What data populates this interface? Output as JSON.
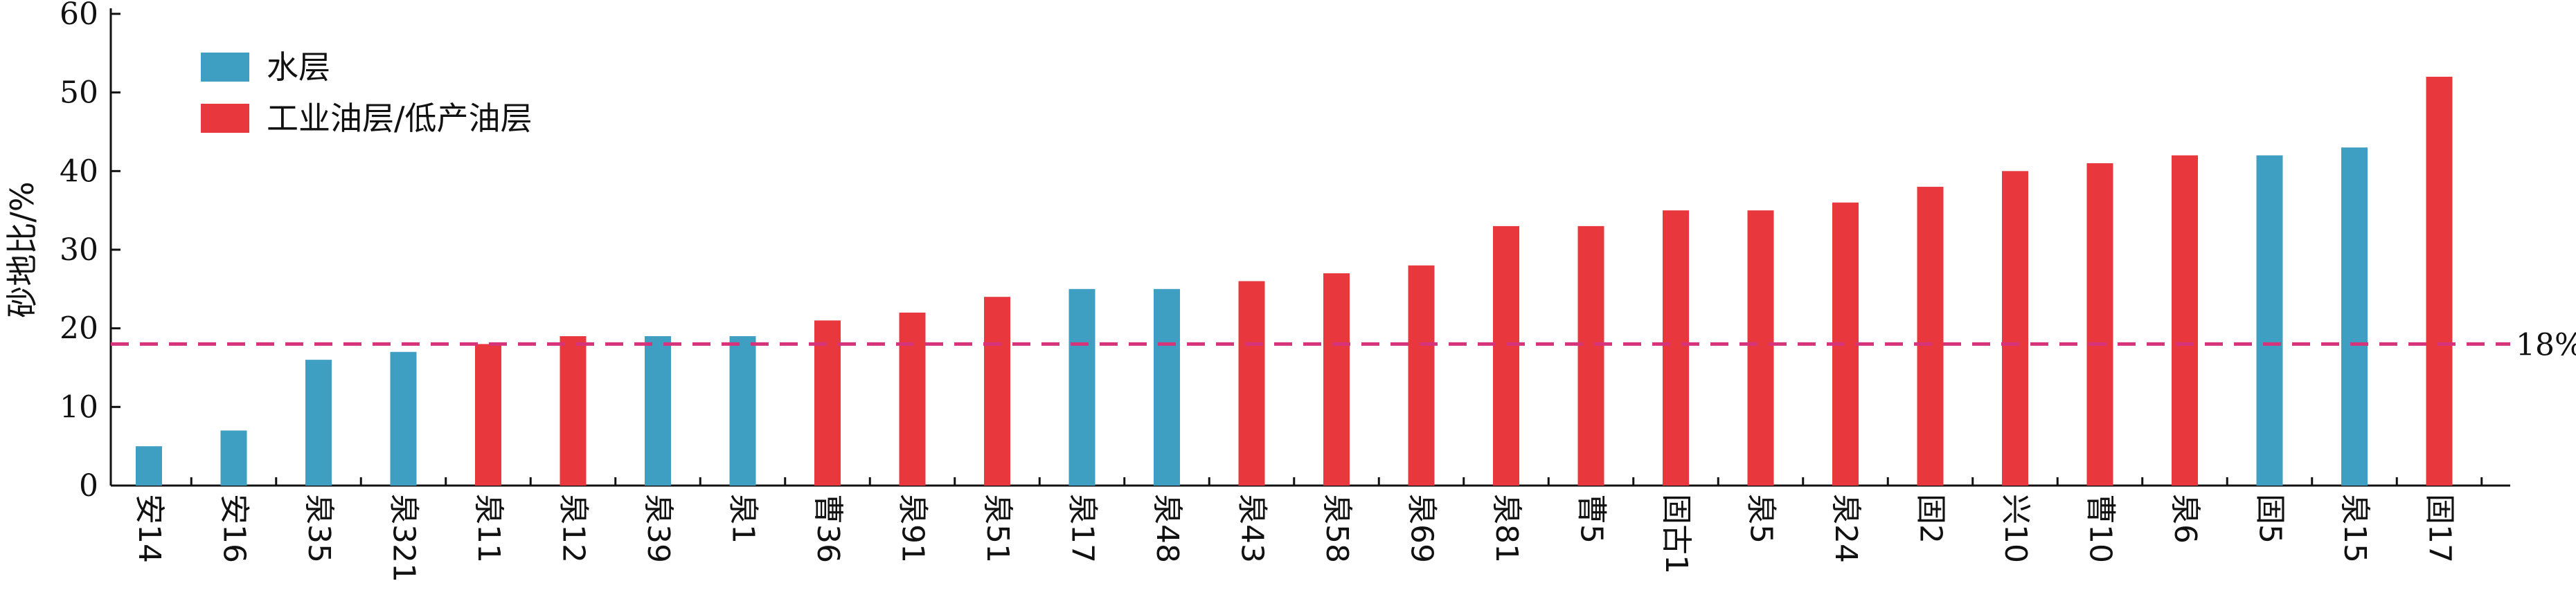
{
  "chart_data": {
    "type": "bar",
    "ylabel": "砂地比/%",
    "ylim": [
      0,
      60
    ],
    "yticks": [
      0,
      10,
      20,
      30,
      40,
      50,
      60
    ],
    "legend": {
      "placement": "top-left",
      "items": [
        {
          "key": "water",
          "label": "水层",
          "color": "#3f9fc3"
        },
        {
          "key": "oil",
          "label": "工业油层/低产油层",
          "color": "#e8383d"
        }
      ]
    },
    "reference_line": {
      "value": 18,
      "label": "18%",
      "color": "#d6337a",
      "style": "dashed"
    },
    "categories": [
      "安14",
      "安16",
      "泉35",
      "泉321",
      "泉11",
      "泉12",
      "泉39",
      "泉1",
      "曹36",
      "泉91",
      "泉51",
      "泉17",
      "泉48",
      "泉43",
      "泉58",
      "泉69",
      "泉81",
      "曹5",
      "固古1",
      "泉5",
      "泉24",
      "固2",
      "兴10",
      "曹10",
      "泉6",
      "固5",
      "泉15",
      "固17"
    ],
    "values": [
      5,
      7,
      16,
      17,
      18,
      19,
      19,
      19,
      21,
      22,
      24,
      25,
      25,
      26,
      27,
      28,
      33,
      33,
      35,
      35,
      36,
      38,
      40,
      41,
      42,
      42,
      43,
      52
    ],
    "layer_type": [
      "water",
      "water",
      "water",
      "water",
      "oil",
      "oil",
      "water",
      "water",
      "oil",
      "oil",
      "oil",
      "water",
      "water",
      "oil",
      "oil",
      "oil",
      "oil",
      "oil",
      "oil",
      "oil",
      "oil",
      "oil",
      "oil",
      "oil",
      "oil",
      "water",
      "water",
      "oil"
    ],
    "grid": false
  }
}
